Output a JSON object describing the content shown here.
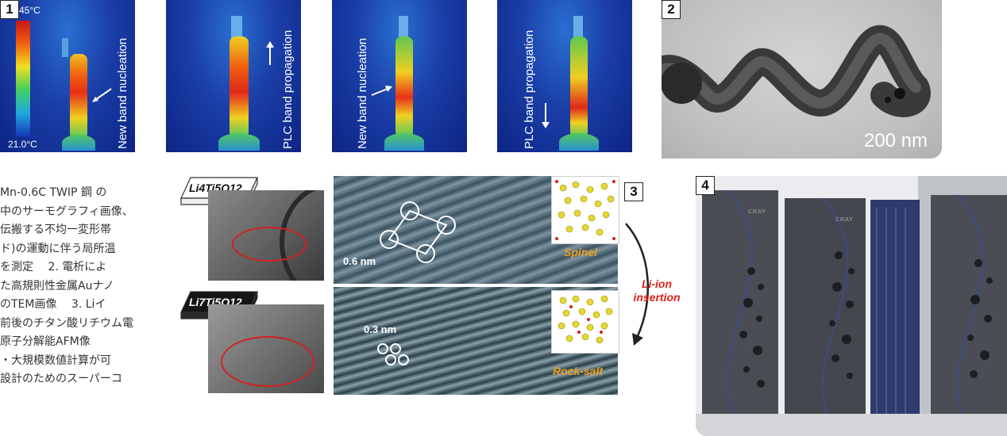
{
  "panel1": {
    "badge": "1",
    "scale_max": "45°C",
    "scale_min": "21.0°C",
    "frames": [
      {
        "label": "New band nucleation"
      },
      {
        "label": "PLC band propagation"
      },
      {
        "label": "New band nucleation"
      },
      {
        "label": "PLC band propagation"
      }
    ]
  },
  "panel2": {
    "badge": "2",
    "scale_bar": "200 nm"
  },
  "panel3": {
    "badge": "3",
    "top_chip": "Li4Ti5O12",
    "bottom_chip": "Li7Ti5O12",
    "top_measure": "0.6 nm",
    "bottom_measure": "0.3 nm",
    "top_phase": "Spinel",
    "bottom_phase": "Rock-salt",
    "transition_line1": "Li-ion",
    "transition_line2": "insertion"
  },
  "panel4": {
    "badge": "4",
    "brand": "CRAY"
  },
  "caption": {
    "lines": [
      "Mn-0.6C TWIP 鋼 の",
      "中のサーモグラフィ画像、",
      "伝搬する不均一変形帯",
      "ド)の運動に伴う局所温",
      "を測定　 2. 電析によ",
      "た高規則性金属Auナノ",
      "のTEM画像　 3. Liイ",
      "前後のチタン酸リチウム電",
      "原子分解能AFM像",
      "・大規模数値計算が可",
      "設計のためのスーパーコ"
    ]
  },
  "colors": {
    "thermo_bg": "#1a3fa8",
    "band_hot": "#e02818",
    "band_mid": "#f0d020",
    "band_cool": "#40c060",
    "red_ring": "#d42020"
  }
}
